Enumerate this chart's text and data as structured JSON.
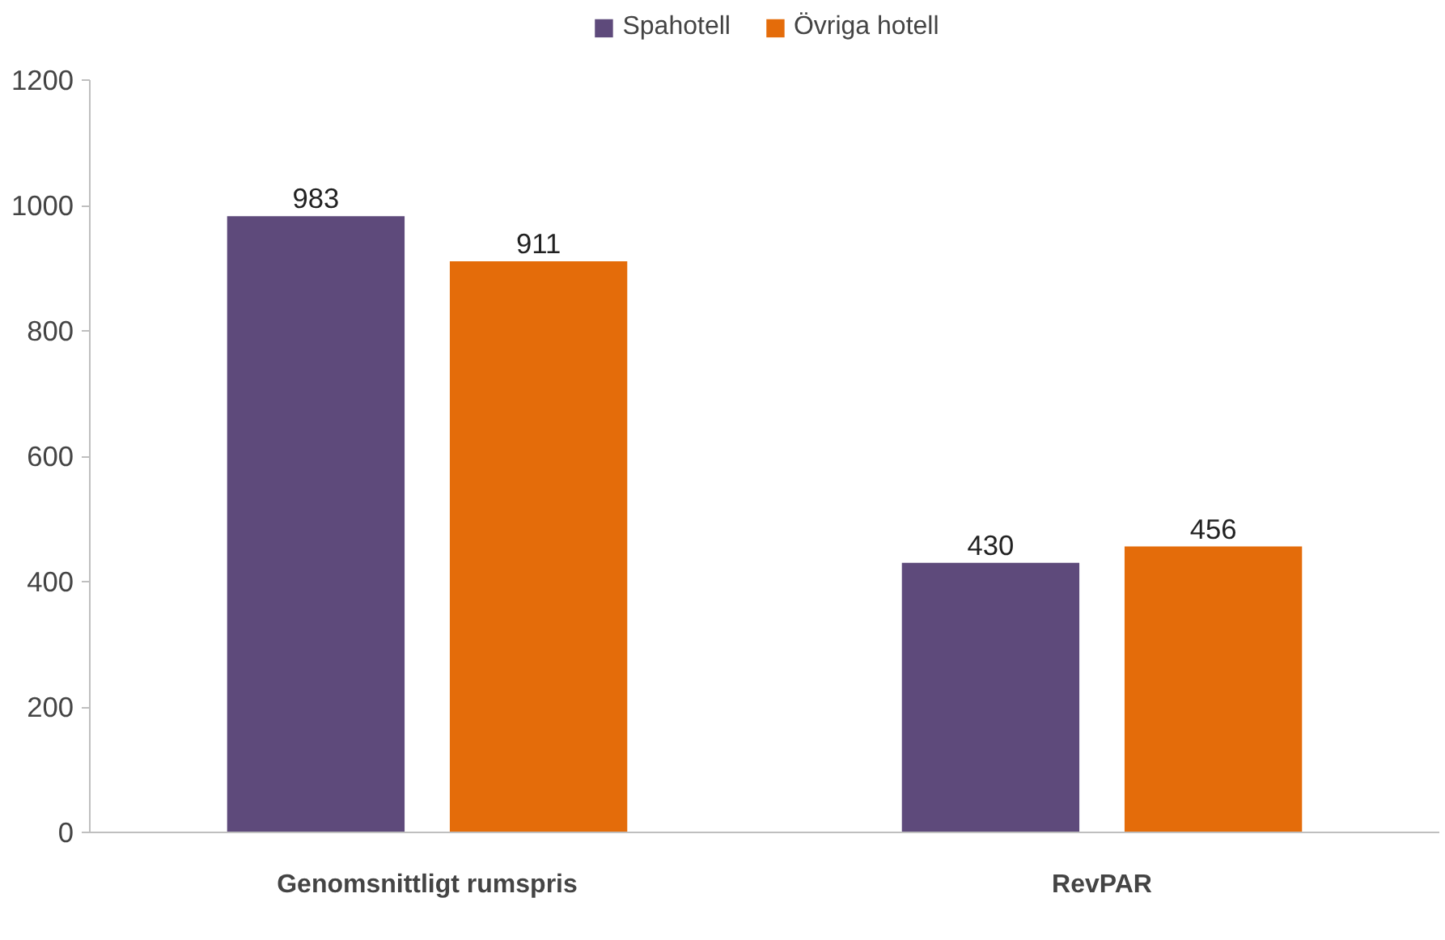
{
  "chart_data": {
    "type": "bar",
    "categories": [
      "Genomsnittligt rumspris",
      "RevPAR"
    ],
    "series": [
      {
        "name": "Spahotell",
        "color": "#5e4a7b",
        "values": [
          983,
          430
        ]
      },
      {
        "name": "Övriga hotell",
        "color": "#e46c0a",
        "values": [
          911,
          456
        ]
      }
    ],
    "ylim": [
      0,
      1200
    ],
    "yticks": [
      0,
      200,
      400,
      600,
      800,
      1000,
      1200
    ],
    "grid": false,
    "legend": "top",
    "data_labels": true
  }
}
